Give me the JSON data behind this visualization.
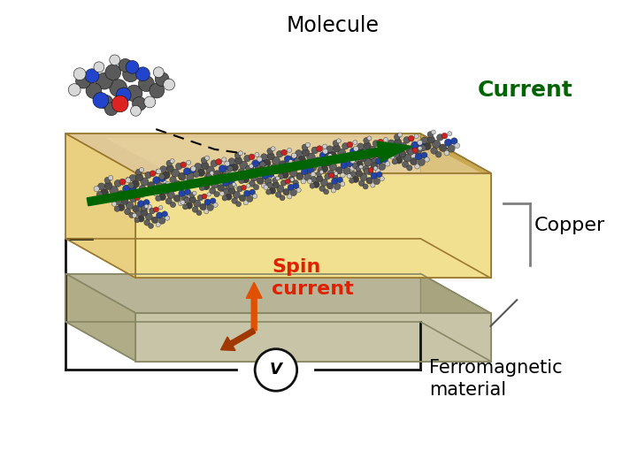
{
  "bg_color": "#ffffff",
  "copper_top_color": "#dfc896",
  "copper_front_color": "#e8d080",
  "copper_front_light": "#f0e090",
  "copper_right_color": "#c8a850",
  "copper_left_color": "#d4b860",
  "ferro_top_color": "#b8b498",
  "ferro_front_color": "#c8c4a8",
  "ferro_right_color": "#a8a480",
  "ferro_left_color": "#b0ac88",
  "current_arrow_color": "#006400",
  "spin_up_color": "#e05000",
  "spin_horiz_color": "#a03800",
  "circuit_color": "#111111",
  "label_molecule": "Molecule",
  "label_current": "Current",
  "label_spin": "Spin\ncurrent",
  "label_copper": "Copper",
  "label_ferro": "Ferromagnetic\nmaterial",
  "label_v": "V",
  "mol_label_fontsize": 17,
  "curr_label_fontsize": 18,
  "spin_label_fontsize": 16,
  "copper_label_fontsize": 16,
  "ferro_label_fontsize": 15,
  "v_fontsize": 13,
  "connector_color": "#808080"
}
